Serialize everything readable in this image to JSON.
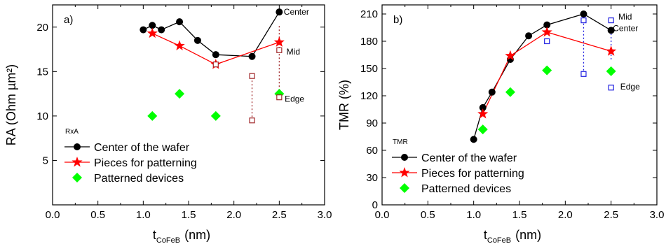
{
  "chart_data": [
    {
      "type": "scatter",
      "panel_label": "a)",
      "panel_subtitle": "RxA",
      "xlabel_main": "t",
      "xlabel_sub": "CoFeB",
      "xlabel_unit": "(nm)",
      "ylabel": "RA (Ohm µm²)",
      "xlim": [
        0.0,
        3.0
      ],
      "ylim": [
        0,
        22.5
      ],
      "xticks": [
        "0.0",
        "0.5",
        "1.0",
        "1.5",
        "2.0",
        "2.5",
        "3.0"
      ],
      "yticks": [
        "5",
        "10",
        "15",
        "20"
      ],
      "series": [
        {
          "name": "Center of the wafer",
          "color": "#000000",
          "marker": "circle",
          "line": true,
          "points": [
            [
              1.0,
              19.7
            ],
            [
              1.1,
              20.2
            ],
            [
              1.2,
              19.7
            ],
            [
              1.4,
              20.6
            ],
            [
              1.6,
              18.5
            ],
            [
              1.8,
              16.9
            ],
            [
              2.2,
              16.7
            ],
            [
              2.5,
              21.7
            ]
          ]
        },
        {
          "name": "Pieces for patterning",
          "color": "#ff0000",
          "marker": "star",
          "line": true,
          "points": [
            [
              1.1,
              19.3
            ],
            [
              1.4,
              17.9
            ],
            [
              1.8,
              15.8
            ],
            [
              2.5,
              18.3
            ]
          ]
        },
        {
          "name": "Patterned devices",
          "color": "#00ff00",
          "marker": "diamond",
          "line": false,
          "points": [
            [
              1.1,
              10.0
            ],
            [
              1.4,
              12.5
            ],
            [
              1.8,
              10.0
            ],
            [
              2.5,
              12.5
            ]
          ]
        },
        {
          "name": "",
          "color": "#a0282a",
          "marker": "square-open",
          "line": false,
          "points": [
            [
              1.8,
              15.8
            ],
            [
              2.2,
              14.5
            ],
            [
              2.2,
              9.5
            ],
            [
              2.5,
              17.4
            ],
            [
              2.5,
              12.1
            ]
          ]
        }
      ],
      "vlines": [
        {
          "x": 2.2,
          "y1": 9.5,
          "y2": 14.5
        },
        {
          "x": 2.5,
          "y1": 12.1,
          "y2": 20.2
        }
      ],
      "vline_color": "#a0282a",
      "annotations": [
        {
          "text": "Center",
          "x": 2.55,
          "y": 21.4
        },
        {
          "text": "Mid",
          "x": 2.58,
          "y": 16.9
        },
        {
          "text": "Edge",
          "x": 2.56,
          "y": 11.6
        }
      ]
    },
    {
      "type": "scatter",
      "panel_label": "b)",
      "panel_subtitle": "TMR",
      "xlabel_main": "t",
      "xlabel_sub": "CoFeB",
      "xlabel_unit": "(nm)",
      "ylabel": "TMR (%)",
      "xlim": [
        0.0,
        3.0
      ],
      "ylim": [
        0,
        220
      ],
      "xticks": [
        "0.0",
        "0.5",
        "1.0",
        "1.5",
        "2.0",
        "2.5",
        "3.0"
      ],
      "yticks": [
        "0",
        "30",
        "60",
        "90",
        "120",
        "150",
        "180",
        "210"
      ],
      "series": [
        {
          "name": "Center of the wafer",
          "color": "#000000",
          "marker": "circle",
          "line": true,
          "points": [
            [
              1.0,
              72
            ],
            [
              1.1,
              107
            ],
            [
              1.2,
              124
            ],
            [
              1.4,
              160
            ],
            [
              1.6,
              186
            ],
            [
              1.8,
              198
            ],
            [
              2.2,
              210
            ],
            [
              2.5,
              192
            ]
          ]
        },
        {
          "name": "Pieces for patterning",
          "color": "#ff0000",
          "marker": "star",
          "line": true,
          "points": [
            [
              1.1,
              100
            ],
            [
              1.4,
              164
            ],
            [
              1.8,
              190
            ],
            [
              2.5,
              169
            ]
          ]
        },
        {
          "name": "Patterned devices",
          "color": "#00ff00",
          "marker": "diamond",
          "line": false,
          "points": [
            [
              1.1,
              83
            ],
            [
              1.4,
              124
            ],
            [
              1.8,
              148
            ],
            [
              2.5,
              147
            ]
          ]
        },
        {
          "name": "",
          "color": "#2020e0",
          "marker": "square-open",
          "line": false,
          "points": [
            [
              1.8,
              180
            ],
            [
              2.2,
              203
            ],
            [
              2.2,
              144
            ],
            [
              2.5,
              203
            ],
            [
              2.5,
              129
            ]
          ]
        }
      ],
      "vlines": [
        {
          "x": 2.2,
          "y1": 144,
          "y2": 203
        },
        {
          "x": 2.5,
          "y1": 160,
          "y2": 190
        }
      ],
      "vline_color": "#2020e0",
      "annotations": [
        {
          "text": "Mid",
          "x": 2.58,
          "y": 204
        },
        {
          "text": "Center",
          "x": 2.52,
          "y": 191
        },
        {
          "text": "Edge",
          "x": 2.6,
          "y": 127
        }
      ]
    }
  ]
}
